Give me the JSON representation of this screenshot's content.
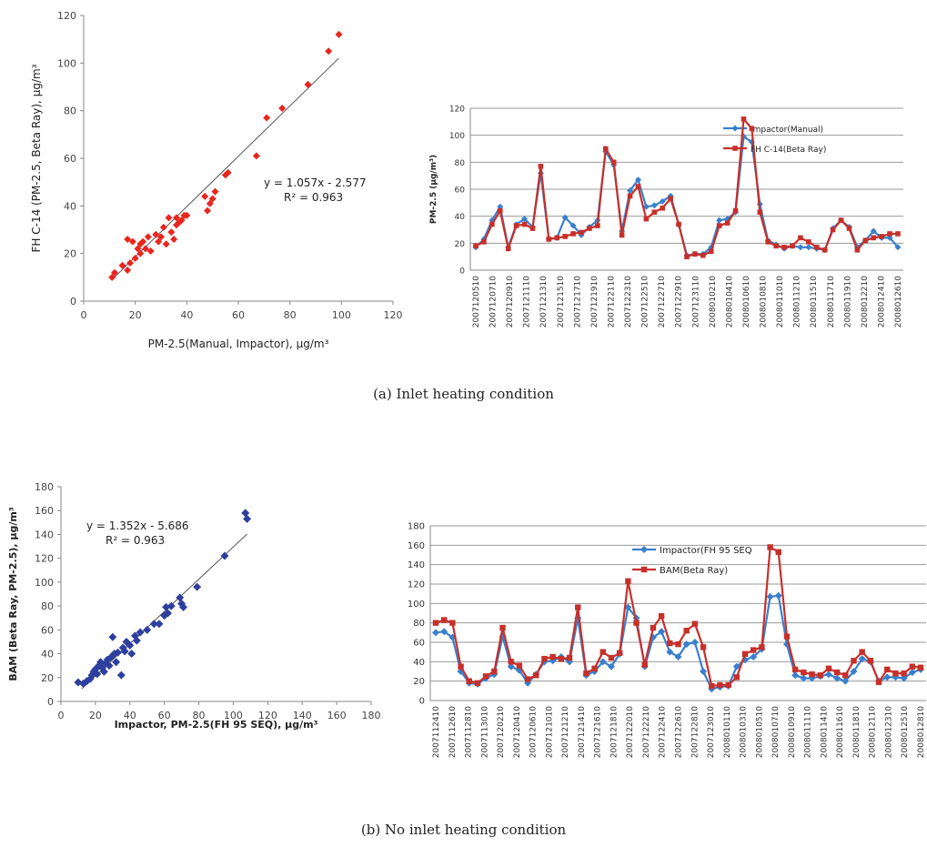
{
  "captions": {
    "a": "(a) Inlet heating condition",
    "b": "(b) No inlet heating condition"
  },
  "chart_data": [
    {
      "id": "a-scatter",
      "type": "scatter",
      "xlabel": "PM-2.5(Manual, Impactor), μg/m³",
      "ylabel": "FH C-14 (PM-2.5, Beta Ray), μg/m³",
      "xlim": [
        0,
        120
      ],
      "ylim": [
        0,
        120
      ],
      "xticks": [
        0,
        20,
        40,
        60,
        80,
        100,
        120
      ],
      "yticks": [
        0,
        20,
        40,
        60,
        80,
        100,
        120
      ],
      "color": "#e8261f",
      "equation": "y = 1.057x - 2.577",
      "r2": "R² = 0.963",
      "trend": {
        "slope": 1.057,
        "intercept": -2.577,
        "x": [
          12,
          99
        ]
      },
      "points": [
        [
          11,
          10
        ],
        [
          12,
          12
        ],
        [
          15,
          15
        ],
        [
          17,
          13
        ],
        [
          18,
          16
        ],
        [
          17,
          26
        ],
        [
          19,
          25
        ],
        [
          20,
          18
        ],
        [
          21,
          22
        ],
        [
          22,
          20
        ],
        [
          22,
          24
        ],
        [
          23,
          25
        ],
        [
          24,
          22
        ],
        [
          25,
          27
        ],
        [
          26,
          21
        ],
        [
          28,
          28
        ],
        [
          29,
          25
        ],
        [
          30,
          27
        ],
        [
          31,
          31
        ],
        [
          32,
          24
        ],
        [
          33,
          35
        ],
        [
          34,
          29
        ],
        [
          35,
          26
        ],
        [
          36,
          32
        ],
        [
          36,
          35
        ],
        [
          37,
          33
        ],
        [
          38,
          34
        ],
        [
          39,
          36
        ],
        [
          40,
          36
        ],
        [
          47,
          44
        ],
        [
          48,
          38
        ],
        [
          49,
          41
        ],
        [
          50,
          43
        ],
        [
          51,
          46
        ],
        [
          55,
          53
        ],
        [
          56,
          54
        ],
        [
          67,
          61
        ],
        [
          71,
          77
        ],
        [
          77,
          81
        ],
        [
          87,
          91
        ],
        [
          95,
          105
        ],
        [
          99,
          112
        ]
      ]
    },
    {
      "id": "a-line",
      "type": "line",
      "ylabel": "PM-2.5 (μg/m³)",
      "ylim": [
        0,
        120
      ],
      "yticks": [
        0,
        20,
        40,
        60,
        80,
        100,
        120
      ],
      "grid": true,
      "legend": "top-right",
      "tick_labels": [
        "2007120510",
        "2007120710",
        "2007120910",
        "2007121110",
        "2007121310",
        "2007121510",
        "2007121710",
        "2007121910",
        "2007122110",
        "2007122310",
        "2007122510",
        "2007122710",
        "2007122910",
        "2007123110",
        "2008010210",
        "2008010410",
        "2008010610",
        "2008010810",
        "2008011010",
        "2008011210",
        "2008011510",
        "2008011710",
        "2008011910",
        "2008012210",
        "2008012410",
        "2008012610"
      ],
      "series": [
        {
          "name": "Impactor(Manual)",
          "color": "#3a7fcc",
          "marker": "diamond",
          "values": [
            17,
            23,
            37,
            47,
            17,
            34,
            38,
            32,
            72,
            23,
            24,
            39,
            33,
            26,
            32,
            37,
            88,
            78,
            29,
            59,
            67,
            47,
            48,
            51,
            55,
            34,
            11,
            12,
            12,
            17,
            37,
            38,
            43,
            99,
            95,
            49,
            22,
            19,
            16,
            18,
            17,
            17,
            16,
            15,
            31,
            37,
            32,
            17,
            22,
            29,
            24,
            24,
            17
          ]
        },
        {
          "name": "FH C-14(Beta Ray)",
          "color": "#c7302a",
          "marker": "square",
          "values": [
            18,
            21,
            34,
            44,
            16,
            33,
            34,
            31,
            77,
            23,
            24,
            25,
            27,
            28,
            31,
            33,
            90,
            80,
            26,
            55,
            62,
            38,
            43,
            46,
            53,
            34,
            10,
            12,
            11,
            14,
            33,
            35,
            44,
            112,
            105,
            43,
            21,
            18,
            17,
            18,
            24,
            21,
            17,
            15,
            30,
            37,
            31,
            15,
            22,
            24,
            25,
            27,
            27
          ]
        }
      ]
    },
    {
      "id": "b-scatter",
      "type": "scatter",
      "xlabel": "Impactor, PM-2.5(FH 95 SEQ), μg/m³",
      "ylabel": "BAM (Beta Ray, PM-2.5), μg/m³",
      "xlim": [
        0,
        180
      ],
      "ylim": [
        0,
        180
      ],
      "xticks": [
        0,
        20,
        40,
        60,
        80,
        100,
        120,
        140,
        160,
        180
      ],
      "yticks": [
        0,
        20,
        40,
        60,
        80,
        100,
        120,
        140,
        160,
        180
      ],
      "color": "#2e3f9e",
      "equation": "y = 1.352x - 5.686",
      "r2": "R² = 0.963",
      "trend": {
        "slope": 1.352,
        "intercept": -5.686,
        "x": [
          12,
          108
        ]
      },
      "points": [
        [
          10,
          16
        ],
        [
          13,
          15
        ],
        [
          15,
          17
        ],
        [
          17,
          19
        ],
        [
          18,
          22
        ],
        [
          19,
          25
        ],
        [
          20,
          27
        ],
        [
          21,
          23
        ],
        [
          22,
          30
        ],
        [
          23,
          33
        ],
        [
          24,
          28
        ],
        [
          25,
          25
        ],
        [
          26,
          32
        ],
        [
          27,
          35
        ],
        [
          28,
          30
        ],
        [
          29,
          37
        ],
        [
          30,
          54
        ],
        [
          31,
          40
        ],
        [
          32,
          33
        ],
        [
          33,
          41
        ],
        [
          35,
          22
        ],
        [
          36,
          45
        ],
        [
          37,
          42
        ],
        [
          38,
          50
        ],
        [
          40,
          47
        ],
        [
          41,
          40
        ],
        [
          43,
          55
        ],
        [
          44,
          51
        ],
        [
          46,
          58
        ],
        [
          50,
          60
        ],
        [
          54,
          65
        ],
        [
          57,
          65
        ],
        [
          60,
          72
        ],
        [
          61,
          79
        ],
        [
          62,
          74
        ],
        [
          64,
          80
        ],
        [
          69,
          87
        ],
        [
          70,
          82
        ],
        [
          71,
          79
        ],
        [
          79,
          96
        ],
        [
          95,
          122
        ],
        [
          107,
          158
        ],
        [
          108,
          153
        ]
      ]
    },
    {
      "id": "b-line",
      "type": "line",
      "ylim": [
        0,
        180
      ],
      "yticks": [
        0,
        20,
        40,
        60,
        80,
        100,
        120,
        140,
        160,
        180
      ],
      "grid": true,
      "legend": "top-right",
      "tick_labels": [
        "2007112410",
        "2007112610",
        "2007112810",
        "2007113010",
        "2007120210",
        "2007120410",
        "2007120610",
        "2007121010",
        "2007121210",
        "2007121410",
        "2007121610",
        "2007121810",
        "2007122010",
        "2007122210",
        "2007122410",
        "2007122610",
        "2007122810",
        "2007123010",
        "2008010110",
        "2008010310",
        "2008010510",
        "2008010710",
        "2008010910",
        "2008011110",
        "2008011410",
        "2008011610",
        "2008011810",
        "2008012110",
        "2008012310",
        "2008012510",
        "2008012810"
      ],
      "series": [
        {
          "name": "Impactor(FH 95 SEQ",
          "color": "#3a7fcc",
          "marker": "diamond",
          "values": [
            70,
            71,
            65,
            30,
            18,
            17,
            23,
            27,
            66,
            35,
            31,
            18,
            27,
            40,
            41,
            45,
            40,
            85,
            26,
            30,
            40,
            35,
            48,
            96,
            85,
            35,
            65,
            71,
            50,
            45,
            58,
            60,
            30,
            12,
            14,
            15,
            35,
            42,
            45,
            53,
            107,
            108,
            58,
            26,
            23,
            23,
            25,
            27,
            23,
            20,
            30,
            43,
            40,
            20,
            24,
            24,
            23,
            29,
            32
          ]
        },
        {
          "name": "BAM(Beta Ray)",
          "color": "#c7302a",
          "marker": "square",
          "values": [
            80,
            83,
            80,
            35,
            20,
            18,
            25,
            30,
            75,
            40,
            36,
            22,
            26,
            43,
            45,
            43,
            44,
            96,
            28,
            33,
            50,
            44,
            49,
            123,
            80,
            37,
            75,
            87,
            59,
            58,
            72,
            79,
            55,
            15,
            16,
            16,
            24,
            48,
            52,
            55,
            158,
            153,
            66,
            32,
            29,
            27,
            26,
            33,
            29,
            26,
            41,
            50,
            41,
            19,
            32,
            28,
            28,
            35,
            34
          ]
        }
      ]
    }
  ]
}
